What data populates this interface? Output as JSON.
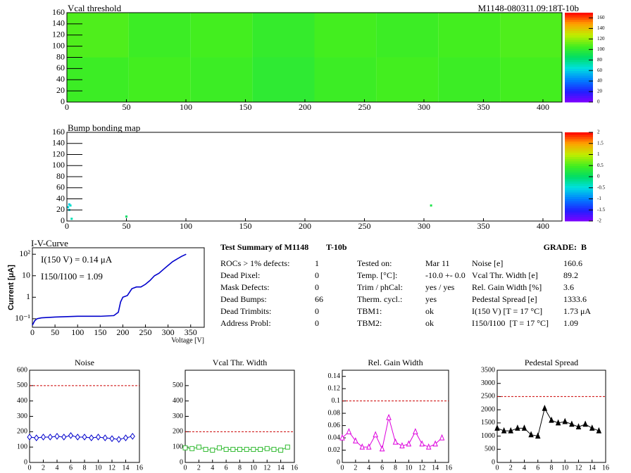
{
  "chart_data": [
    {
      "type": "heatmap",
      "title": "Vcal threshold",
      "annotation": "M1148-080311.09:18T-10b",
      "xlim": [
        0,
        416
      ],
      "ylim": [
        0,
        160
      ],
      "xticks": [
        0,
        50,
        100,
        150,
        200,
        250,
        300,
        350,
        400
      ],
      "yticks": [
        0,
        20,
        40,
        60,
        80,
        100,
        120,
        140,
        160
      ],
      "zlim": [
        0,
        170
      ],
      "zticks": [
        0,
        20,
        40,
        60,
        80,
        100,
        120,
        140,
        160
      ],
      "values": [
        [
          104,
          106,
          104,
          100,
          104,
          106,
          104,
          106
        ],
        [
          108,
          104,
          106,
          102,
          106,
          104,
          106,
          108
        ]
      ]
    },
    {
      "type": "scatter",
      "title": "Bump bonding map",
      "xlim": [
        0,
        416
      ],
      "ylim": [
        0,
        160
      ],
      "xticks": [
        0,
        50,
        100,
        150,
        200,
        250,
        300,
        350,
        400
      ],
      "yticks": [
        0,
        20,
        40,
        60,
        80,
        100,
        120,
        140,
        160
      ],
      "zlim": [
        -2,
        2
      ],
      "zticks": [
        -2,
        -1.5,
        -1,
        -0.5,
        0,
        0.5,
        1,
        1.5,
        2
      ],
      "x": [
        1,
        2,
        3,
        2,
        4,
        50,
        306
      ],
      "y": [
        25,
        30,
        28,
        20,
        4,
        8,
        28
      ],
      "values": [
        -0.5,
        -0.6,
        -0.4,
        -0.5,
        -0.3,
        0,
        0.2
      ]
    },
    {
      "type": "line",
      "title": "I-V-Curve",
      "x_label": "Voltage [V]",
      "y_label": "Current [μA]",
      "log_y": true,
      "color": "#0000cc",
      "annotations": [
        "I(150 V) = 0.14 μA",
        "I150/I100 =  1.09"
      ],
      "xlim": [
        0,
        380
      ],
      "ylim": [
        0.04,
        200
      ],
      "xticks": [
        0,
        50,
        100,
        150,
        200,
        250,
        300,
        350
      ],
      "yticks": [
        {
          "value": 0.1,
          "label": "10⁻¹"
        },
        1,
        10,
        {
          "value": 100,
          "label": "10²"
        }
      ],
      "x": [
        0,
        5,
        10,
        20,
        50,
        100,
        150,
        180,
        190,
        195,
        200,
        210,
        220,
        230,
        240,
        250,
        260,
        270,
        280,
        290,
        300,
        310,
        320,
        330,
        340
      ],
      "values": [
        0.05,
        0.08,
        0.1,
        0.11,
        0.12,
        0.13,
        0.13,
        0.14,
        0.2,
        0.6,
        1,
        1.2,
        2.5,
        3,
        3,
        4,
        6,
        10,
        13,
        20,
        30,
        45,
        60,
        80,
        100
      ]
    },
    {
      "type": "line",
      "title": "Noise",
      "color": "#0000cc",
      "marker": "diamond",
      "reference_line": 500,
      "xlim": [
        0,
        16
      ],
      "ylim": [
        0,
        600
      ],
      "xticks": [
        0,
        2,
        4,
        6,
        8,
        10,
        12,
        14,
        16
      ],
      "yticks": [
        0,
        100,
        200,
        300,
        400,
        500,
        600
      ],
      "x": [
        0,
        1,
        2,
        3,
        4,
        5,
        6,
        7,
        8,
        9,
        10,
        11,
        12,
        13,
        14,
        15
      ],
      "values": [
        165,
        160,
        165,
        165,
        170,
        165,
        175,
        165,
        165,
        160,
        165,
        160,
        155,
        150,
        160,
        170
      ]
    },
    {
      "type": "line",
      "title": "Vcal Thr. Width",
      "color": "#33bb33",
      "marker": "square",
      "reference_line": 200,
      "xlim": [
        0,
        16
      ],
      "ylim": [
        0,
        600
      ],
      "xticks": [
        0,
        2,
        4,
        6,
        8,
        10,
        12,
        14,
        16
      ],
      "yticks": [
        0,
        100,
        200,
        300,
        400,
        500
      ],
      "x": [
        0,
        1,
        2,
        3,
        4,
        5,
        6,
        7,
        8,
        9,
        10,
        11,
        12,
        13,
        14,
        15
      ],
      "values": [
        95,
        90,
        100,
        85,
        80,
        95,
        85,
        85,
        85,
        85,
        85,
        85,
        90,
        85,
        80,
        100
      ]
    },
    {
      "type": "line",
      "title": "Rel. Gain Width",
      "color": "#dd00dd",
      "marker": "triangle",
      "reference_line": 0.1,
      "xlim": [
        0,
        16
      ],
      "ylim": [
        0,
        0.15
      ],
      "xticks": [
        0,
        2,
        4,
        6,
        8,
        10,
        12,
        14,
        16
      ],
      "yticks": [
        0,
        0.02,
        0.04,
        0.06,
        0.08,
        0.1,
        0.12,
        0.14
      ],
      "x": [
        0,
        1,
        2,
        3,
        4,
        5,
        6,
        7,
        8,
        9,
        10,
        11,
        12,
        13,
        14,
        15
      ],
      "values": [
        0.04,
        0.05,
        0.035,
        0.025,
        0.025,
        0.045,
        0.022,
        0.073,
        0.033,
        0.027,
        0.03,
        0.05,
        0.03,
        0.025,
        0.03,
        0.04
      ]
    },
    {
      "type": "line",
      "title": "Pedestal Spread",
      "color": "#000000",
      "marker": "filled-triangle",
      "reference_line": 2500,
      "xlim": [
        0,
        16
      ],
      "ylim": [
        0,
        3500
      ],
      "xticks": [
        0,
        2,
        4,
        6,
        8,
        10,
        12,
        14,
        16
      ],
      "yticks": [
        0,
        500,
        1000,
        1500,
        2000,
        2500,
        3000,
        3500
      ],
      "x": [
        0,
        1,
        2,
        3,
        4,
        5,
        6,
        7,
        8,
        9,
        10,
        11,
        12,
        13,
        14,
        15
      ],
      "values": [
        1300,
        1200,
        1200,
        1300,
        1300,
        1050,
        1000,
        2050,
        1600,
        1500,
        1550,
        1450,
        1350,
        1450,
        1300,
        1200
      ]
    }
  ],
  "summary": {
    "title": "Test Summary of M1148",
    "module": "T-10b",
    "grade": "GRADE:  B",
    "left": [
      [
        "ROCs > 1% defects:",
        "1"
      ],
      [
        "Dead Pixel:",
        "0"
      ],
      [
        "Mask Defects:",
        "0"
      ],
      [
        "Dead Bumps:",
        "66"
      ],
      [
        "Dead Trimbits:",
        "0"
      ],
      [
        "Address Probl:",
        "0"
      ]
    ],
    "middle": [
      [
        "Tested on:",
        "Mar 11"
      ],
      [
        "Temp. [°C]:",
        "-10.0 +- 0.0"
      ],
      [
        "Trim / phCal:",
        "yes / yes"
      ],
      [
        "Therm. cycl.:",
        "yes"
      ],
      [
        "TBM1:",
        "ok"
      ],
      [
        "TBM2:",
        "ok"
      ]
    ],
    "right": [
      [
        "Noise [e]",
        "160.6"
      ],
      [
        "Vcal Thr. Width [e]",
        "89.2"
      ],
      [
        "Rel. Gain Width [%]",
        "3.6"
      ],
      [
        "Pedestal Spread [e]",
        "1333.6"
      ],
      [
        "I(150 V) [T = 17 °C]",
        "1.73 μA"
      ],
      [
        "I150/I100  [T = 17 °C]",
        "1.09"
      ]
    ]
  }
}
